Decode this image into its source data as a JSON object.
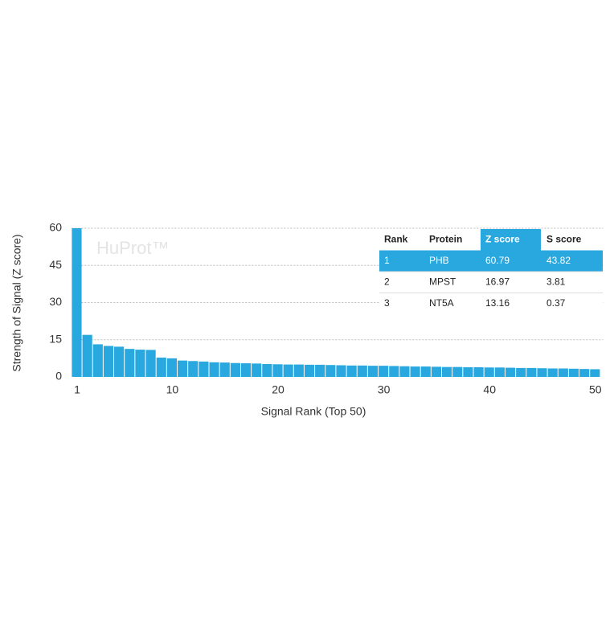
{
  "chart_data": {
    "type": "bar",
    "x": [
      1,
      2,
      3,
      4,
      5,
      6,
      7,
      8,
      9,
      10,
      11,
      12,
      13,
      14,
      15,
      16,
      17,
      18,
      19,
      20,
      21,
      22,
      23,
      24,
      25,
      26,
      27,
      28,
      29,
      30,
      31,
      32,
      33,
      34,
      35,
      36,
      37,
      38,
      39,
      40,
      41,
      42,
      43,
      44,
      45,
      46,
      47,
      48,
      49,
      50
    ],
    "values": [
      60.79,
      16.97,
      13.16,
      12.5,
      12.2,
      11.3,
      11.0,
      10.9,
      7.8,
      7.5,
      6.6,
      6.4,
      6.2,
      5.9,
      5.8,
      5.6,
      5.5,
      5.4,
      5.2,
      5.1,
      5.0,
      5.0,
      4.9,
      4.9,
      4.8,
      4.7,
      4.6,
      4.6,
      4.5,
      4.5,
      4.4,
      4.3,
      4.2,
      4.2,
      4.1,
      4.0,
      4.0,
      3.9,
      3.9,
      3.8,
      3.8,
      3.7,
      3.6,
      3.6,
      3.5,
      3.4,
      3.4,
      3.3,
      3.2,
      3.1
    ],
    "color": "#29a8e0",
    "xlim": [
      0.5,
      50.5
    ],
    "xticks": [
      1,
      10,
      20,
      30,
      40,
      50
    ],
    "ylim": [
      0,
      60
    ],
    "yticks": [
      0,
      15,
      30,
      45,
      60
    ],
    "grid": true,
    "x_label": "Signal Rank (Top 50)",
    "y_label": "Strength of Signal (Z score)",
    "watermark": "HuProt™"
  },
  "table": {
    "columns": [
      "Rank",
      "Protein",
      "Z score",
      "S score"
    ],
    "rows": [
      [
        1,
        "PHB",
        60.79,
        43.82
      ],
      [
        2,
        "MPST",
        16.97,
        3.81
      ],
      [
        3,
        "NT5A",
        13.16,
        0.37
      ]
    ]
  }
}
